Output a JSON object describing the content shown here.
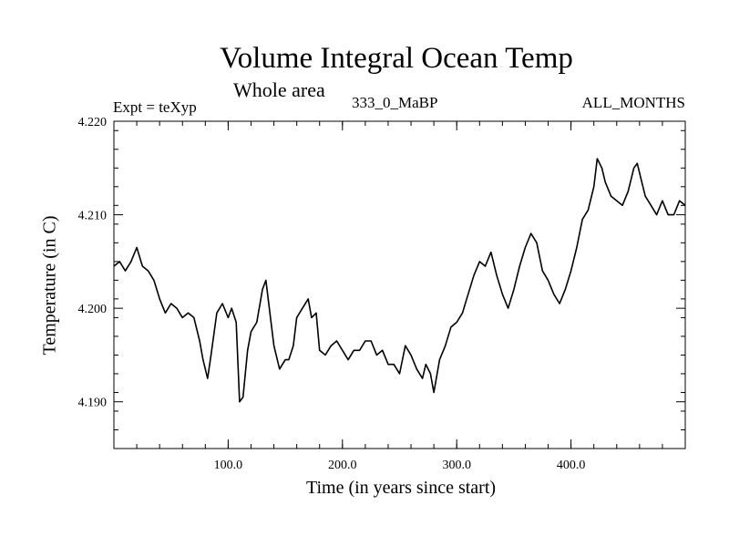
{
  "header": {
    "title": "Volume Integral Ocean Temp",
    "subtitle": "Whole area",
    "expt": "Expt = teXyp",
    "run": "333_0_MaBP",
    "months": "ALL_MONTHS"
  },
  "chart_data": {
    "type": "line",
    "title": "Volume Integral Ocean Temp",
    "subtitle": "Whole area",
    "xlabel": "Time (in years since start)",
    "ylabel": "Temperature (in C)",
    "xlim": [
      0,
      500
    ],
    "ylim": [
      4.185,
      4.22
    ],
    "xticks": [
      100,
      200,
      300,
      400
    ],
    "xtick_labels": [
      "100.0",
      "200.0",
      "300.0",
      "400.0"
    ],
    "yticks": [
      4.19,
      4.2,
      4.21,
      4.22
    ],
    "ytick_labels": [
      "4.190",
      "4.200",
      "4.210",
      "4.220"
    ],
    "grid": false,
    "line_color": "#000000",
    "series": [
      {
        "x": [
          0,
          5,
          10,
          15,
          20,
          25,
          30,
          35,
          40,
          45,
          50,
          55,
          60,
          65,
          70,
          75,
          78,
          82,
          85,
          90,
          95,
          100,
          103,
          107,
          110,
          113,
          117,
          120,
          125,
          130,
          133,
          137,
          140,
          145,
          150,
          153,
          157,
          160,
          165,
          170,
          173,
          177,
          180,
          185,
          190,
          195,
          200,
          205,
          210,
          215,
          220,
          225,
          230,
          235,
          240,
          245,
          250,
          255,
          260,
          265,
          270,
          273,
          277,
          280,
          285,
          290,
          295,
          300,
          305,
          310,
          315,
          320,
          325,
          330,
          335,
          340,
          345,
          350,
          355,
          360,
          365,
          370,
          375,
          380,
          385,
          390,
          395,
          400,
          405,
          410,
          415,
          420,
          423,
          427,
          430,
          435,
          440,
          445,
          450,
          455,
          458,
          462,
          465,
          470,
          475,
          480,
          485,
          490,
          495,
          500
        ],
        "y": [
          4.2045,
          4.205,
          4.204,
          4.205,
          4.2065,
          4.2045,
          4.204,
          4.203,
          4.201,
          4.1995,
          4.2005,
          4.2,
          4.199,
          4.1995,
          4.199,
          4.1965,
          4.1945,
          4.1925,
          4.195,
          4.1995,
          4.2005,
          4.199,
          4.2,
          4.1985,
          4.19,
          4.1905,
          4.1955,
          4.1975,
          4.1985,
          4.202,
          4.203,
          4.199,
          4.196,
          4.1935,
          4.1945,
          4.1945,
          4.196,
          4.199,
          4.2,
          4.201,
          4.199,
          4.1995,
          4.1955,
          4.195,
          4.196,
          4.1965,
          4.1955,
          4.1945,
          4.1955,
          4.1955,
          4.1965,
          4.1965,
          4.195,
          4.1955,
          4.194,
          4.194,
          4.193,
          4.196,
          4.195,
          4.1935,
          4.1925,
          4.194,
          4.193,
          4.191,
          4.1945,
          4.196,
          4.198,
          4.1985,
          4.1995,
          4.2015,
          4.2035,
          4.205,
          4.2045,
          4.206,
          4.2035,
          4.2015,
          4.2,
          4.202,
          4.2045,
          4.2065,
          4.208,
          4.207,
          4.204,
          4.203,
          4.2015,
          4.2005,
          4.202,
          4.204,
          4.2065,
          4.2095,
          4.2105,
          4.213,
          4.216,
          4.215,
          4.2135,
          4.212,
          4.2115,
          4.211,
          4.2125,
          4.215,
          4.2155,
          4.2135,
          4.212,
          4.211,
          4.21,
          4.2115,
          4.21,
          4.21,
          4.2115,
          4.211
        ]
      }
    ]
  }
}
